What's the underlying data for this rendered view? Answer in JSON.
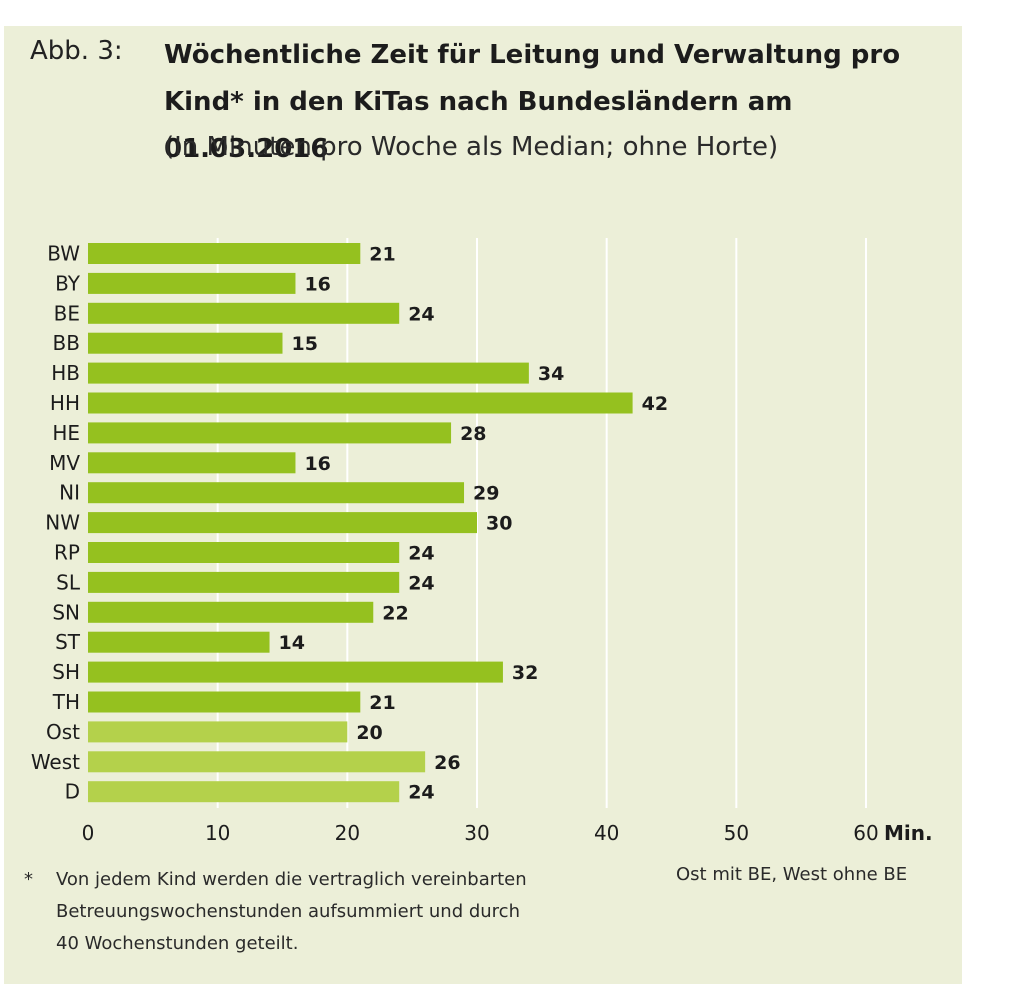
{
  "header": {
    "fig_label": "Abb. 3:",
    "title": "Wöchentliche Zeit für Leitung und Verwaltung pro Kind* in den KiTas nach Bundesländern am 01.03.2016",
    "subtitle": "(In Minuten pro Woche als Median; ohne Horte)"
  },
  "footnote": {
    "marker": "*",
    "line1": "Von jedem Kind werden die vertraglich vereinbarten",
    "line2": "Betreuungswochenstunden aufsummiert und durch",
    "line3": "40 Wochenstunden geteilt."
  },
  "note": "Ost mit BE, West ohne BE",
  "colors": {
    "bar": "#95c11f",
    "bar_light": "#b4d14b",
    "background": "#ecefd8",
    "grid": "#ffffff"
  },
  "chart_data": {
    "type": "bar",
    "orientation": "horizontal",
    "categories": [
      "BW",
      "BY",
      "BE",
      "BB",
      "HB",
      "HH",
      "HE",
      "MV",
      "NI",
      "NW",
      "RP",
      "SL",
      "SN",
      "ST",
      "SH",
      "TH",
      "Ost",
      "West",
      "D"
    ],
    "values": [
      21,
      16,
      24,
      15,
      34,
      42,
      28,
      16,
      29,
      30,
      24,
      24,
      22,
      14,
      32,
      21,
      20,
      26,
      24
    ],
    "xlim": [
      0,
      60
    ],
    "xticks": [
      "0",
      "10",
      "20",
      "30",
      "40",
      "50",
      "60"
    ],
    "x_unit": "Min.",
    "grid": true,
    "summary_categories": [
      "Ost",
      "West",
      "D"
    ]
  }
}
